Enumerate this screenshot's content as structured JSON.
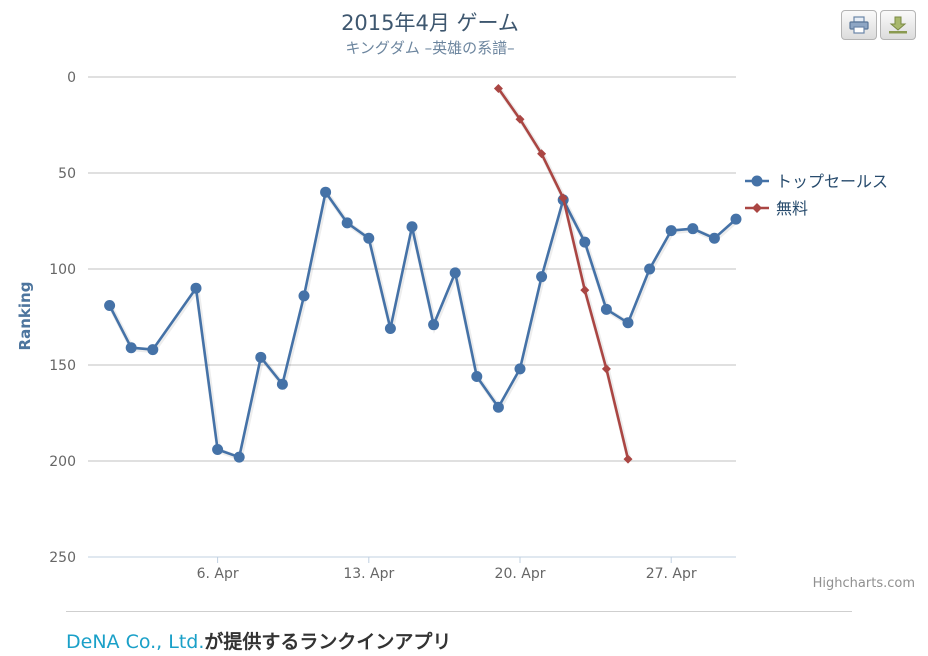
{
  "chart_data": {
    "type": "line",
    "title": "2015年4月 ゲーム",
    "subtitle": "キングダム –英雄の系譜–",
    "ylabel": "Ranking",
    "y_reversed": true,
    "ylim": [
      0,
      250
    ],
    "yticks": [
      0,
      50,
      100,
      150,
      200,
      250
    ],
    "xlim": [
      "2015-03-31",
      "2015-04-30"
    ],
    "xticks": [
      {
        "date": "2015-04-06",
        "label": "6. Apr"
      },
      {
        "date": "2015-04-13",
        "label": "13. Apr"
      },
      {
        "date": "2015-04-20",
        "label": "20. Apr"
      },
      {
        "date": "2015-04-27",
        "label": "27. Apr"
      }
    ],
    "legend_position": "right",
    "credits": "Highcharts.com",
    "series": [
      {
        "name": "トップセールス",
        "color": "#4572a7",
        "marker": "circle",
        "x": [
          "2015-04-01",
          "2015-04-02",
          "2015-04-03",
          "2015-04-05",
          "2015-04-06",
          "2015-04-07",
          "2015-04-08",
          "2015-04-09",
          "2015-04-10",
          "2015-04-11",
          "2015-04-12",
          "2015-04-13",
          "2015-04-14",
          "2015-04-15",
          "2015-04-16",
          "2015-04-17",
          "2015-04-18",
          "2015-04-19",
          "2015-04-20",
          "2015-04-21",
          "2015-04-22",
          "2015-04-23",
          "2015-04-24",
          "2015-04-25",
          "2015-04-26",
          "2015-04-27",
          "2015-04-28",
          "2015-04-29",
          "2015-04-30"
        ],
        "values": [
          119,
          141,
          142,
          110,
          194,
          198,
          146,
          160,
          114,
          60,
          76,
          84,
          131,
          78,
          129,
          102,
          156,
          172,
          152,
          104,
          64,
          86,
          121,
          128,
          100,
          80,
          79,
          84,
          74
        ]
      },
      {
        "name": "無料",
        "color": "#aa4643",
        "marker": "diamond",
        "x": [
          "2015-04-19",
          "2015-04-20",
          "2015-04-21",
          "2015-04-22",
          "2015-04-23",
          "2015-04-24",
          "2015-04-25"
        ],
        "values": [
          6,
          22,
          40,
          63,
          111,
          152,
          199
        ]
      }
    ]
  },
  "toolbar": {
    "print_icon": "printer-icon",
    "export_icon": "download-icon"
  },
  "footer": {
    "company": "DeNA Co., Ltd.",
    "suffix": "が提供するランクインアプリ"
  }
}
